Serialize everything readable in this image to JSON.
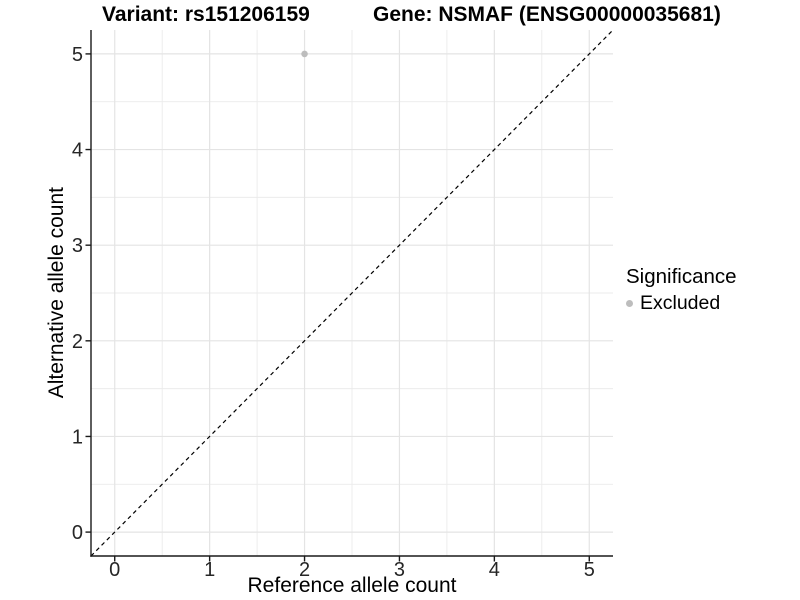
{
  "titles": {
    "variant": "Variant: rs151206159",
    "gene": "Gene: NSMAF (ENSG00000035681)"
  },
  "legend": {
    "title": "Significance",
    "items": [
      {
        "label": "Excluded",
        "color": "#bdbdbd"
      }
    ]
  },
  "colors": {
    "background": "#ffffff",
    "grid_major": "#e4e4e4",
    "grid_minor": "#ebebeb",
    "axis": "#1a1a1a",
    "tick_label": "#262626",
    "point": "#bdbdbd",
    "reference_line": "#000000"
  },
  "chart_data": {
    "type": "scatter",
    "title": "Variant: rs151206159    Gene: NSMAF (ENSG00000035681)",
    "xlabel": "Reference allele count",
    "ylabel": "Alternative allele count",
    "xlim": [
      -0.25,
      5.25
    ],
    "ylim": [
      -0.25,
      5.25
    ],
    "x_ticks": [
      0,
      1,
      2,
      3,
      4,
      5
    ],
    "y_ticks": [
      0,
      1,
      2,
      3,
      4,
      5
    ],
    "x_minor_ticks": [
      0.5,
      1.5,
      2.5,
      3.5,
      4.5
    ],
    "y_minor_ticks": [
      0.5,
      1.5,
      2.5,
      3.5,
      4.5
    ],
    "grid": true,
    "legend_position": "right",
    "series": [
      {
        "name": "Excluded",
        "color": "#bdbdbd",
        "points": [
          [
            2,
            5
          ]
        ]
      }
    ],
    "reference_line": {
      "style": "dashed",
      "color": "#000000",
      "from": [
        -0.25,
        -0.25
      ],
      "to": [
        5.25,
        5.25
      ]
    }
  }
}
